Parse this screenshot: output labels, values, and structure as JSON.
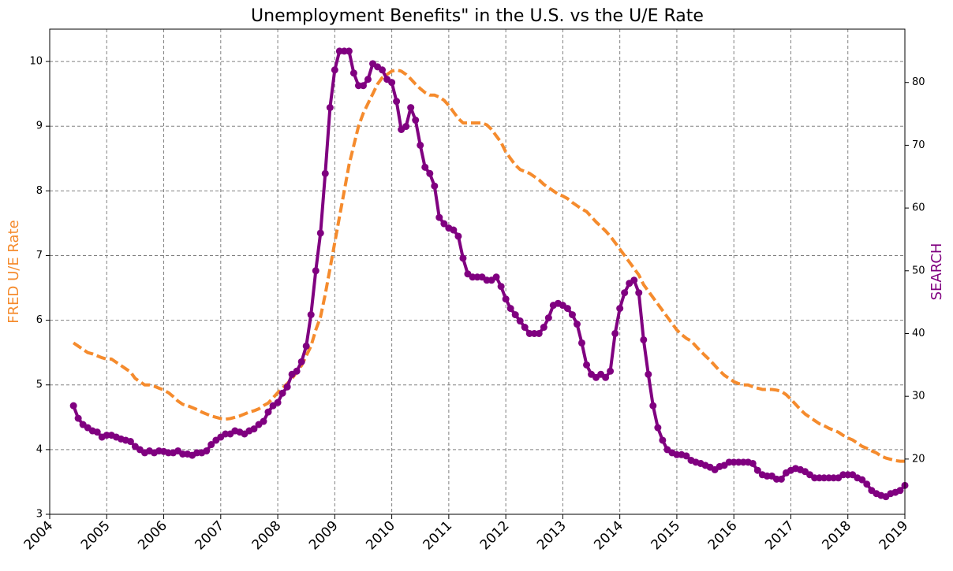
{
  "chart_data": {
    "type": "line",
    "title": "Unemployment Benefits\" in the U.S. vs the U/E Rate",
    "ylabel": "FRED U/E Rate",
    "y2label": "SEARCH",
    "xlim": [
      2004,
      2019
    ],
    "xticks": [
      2004,
      2005,
      2006,
      2007,
      2008,
      2009,
      2010,
      2011,
      2012,
      2013,
      2014,
      2015,
      2016,
      2017,
      2018,
      2019
    ],
    "ylim": [
      3,
      10.5
    ],
    "yticks": [
      3,
      4,
      5,
      6,
      7,
      8,
      9,
      10
    ],
    "y2lim": [
      11.2,
      88.5
    ],
    "y2ticks": [
      20,
      30,
      40,
      50,
      60,
      70,
      80
    ],
    "grid": true,
    "x": [
      2004.417,
      2004.5,
      2004.583,
      2004.667,
      2004.75,
      2004.833,
      2004.917,
      2005,
      2005.083,
      2005.167,
      2005.25,
      2005.333,
      2005.417,
      2005.5,
      2005.583,
      2005.667,
      2005.75,
      2005.833,
      2005.917,
      2006,
      2006.083,
      2006.167,
      2006.25,
      2006.333,
      2006.417,
      2006.5,
      2006.583,
      2006.667,
      2006.75,
      2006.833,
      2006.917,
      2007,
      2007.083,
      2007.167,
      2007.25,
      2007.333,
      2007.417,
      2007.5,
      2007.583,
      2007.667,
      2007.75,
      2007.833,
      2007.917,
      2008,
      2008.083,
      2008.167,
      2008.25,
      2008.333,
      2008.417,
      2008.5,
      2008.583,
      2008.667,
      2008.75,
      2008.833,
      2008.917,
      2009,
      2009.083,
      2009.167,
      2009.25,
      2009.333,
      2009.417,
      2009.5,
      2009.583,
      2009.667,
      2009.75,
      2009.833,
      2009.917,
      2010,
      2010.083,
      2010.167,
      2010.25,
      2010.333,
      2010.417,
      2010.5,
      2010.583,
      2010.667,
      2010.75,
      2010.833,
      2010.917,
      2011,
      2011.083,
      2011.167,
      2011.25,
      2011.333,
      2011.417,
      2011.5,
      2011.583,
      2011.667,
      2011.75,
      2011.833,
      2011.917,
      2012,
      2012.083,
      2012.167,
      2012.25,
      2012.333,
      2012.417,
      2012.5,
      2012.583,
      2012.667,
      2012.75,
      2012.833,
      2012.917,
      2013,
      2013.083,
      2013.167,
      2013.25,
      2013.333,
      2013.417,
      2013.5,
      2013.583,
      2013.667,
      2013.75,
      2013.833,
      2013.917,
      2014,
      2014.083,
      2014.167,
      2014.25,
      2014.333,
      2014.417,
      2014.5,
      2014.583,
      2014.667,
      2014.75,
      2014.833,
      2014.917,
      2015,
      2015.083,
      2015.167,
      2015.25,
      2015.333,
      2015.417,
      2015.5,
      2015.583,
      2015.667,
      2015.75,
      2015.833,
      2015.917,
      2016,
      2016.083,
      2016.167,
      2016.25,
      2016.333,
      2016.417,
      2016.5,
      2016.583,
      2016.667,
      2016.75,
      2016.833,
      2016.917,
      2017,
      2017.083,
      2017.167,
      2017.25,
      2017.333,
      2017.417,
      2017.5,
      2017.583,
      2017.667,
      2017.75,
      2017.833,
      2017.917,
      2018,
      2018.083,
      2018.167,
      2018.25,
      2018.333,
      2018.417,
      2018.5,
      2018.583,
      2018.667,
      2018.75,
      2018.833,
      2018.917,
      2019
    ],
    "series": [
      {
        "color": "#f58b2d",
        "axis": "y",
        "values": [
          5.65,
          5.6,
          5.55,
          5.5,
          5.48,
          5.45,
          5.42,
          5.4,
          5.4,
          5.35,
          5.3,
          5.25,
          5.2,
          5.1,
          5.05,
          5.0,
          5.0,
          4.98,
          4.95,
          4.92,
          4.88,
          4.82,
          4.75,
          4.7,
          4.68,
          4.65,
          4.62,
          4.58,
          4.55,
          4.52,
          4.5,
          4.48,
          4.47,
          4.48,
          4.5,
          4.52,
          4.55,
          4.58,
          4.6,
          4.63,
          4.68,
          4.72,
          4.8,
          4.88,
          4.95,
          5.02,
          5.1,
          5.2,
          5.3,
          5.45,
          5.6,
          5.85,
          6.05,
          6.4,
          6.8,
          7.2,
          7.6,
          8.0,
          8.4,
          8.7,
          9.0,
          9.2,
          9.35,
          9.5,
          9.65,
          9.75,
          9.8,
          9.85,
          9.87,
          9.85,
          9.8,
          9.73,
          9.65,
          9.58,
          9.52,
          9.48,
          9.48,
          9.45,
          9.4,
          9.32,
          9.22,
          9.12,
          9.05,
          9.05,
          9.05,
          9.05,
          9.05,
          9.02,
          8.95,
          8.85,
          8.75,
          8.6,
          8.5,
          8.4,
          8.33,
          8.3,
          8.27,
          8.22,
          8.17,
          8.1,
          8.05,
          8.0,
          7.95,
          7.92,
          7.88,
          7.82,
          7.77,
          7.72,
          7.68,
          7.6,
          7.52,
          7.45,
          7.38,
          7.3,
          7.2,
          7.1,
          7.0,
          6.9,
          6.8,
          6.7,
          6.55,
          6.45,
          6.35,
          6.25,
          6.15,
          6.05,
          5.95,
          5.85,
          5.78,
          5.72,
          5.68,
          5.6,
          5.52,
          5.45,
          5.38,
          5.3,
          5.22,
          5.15,
          5.1,
          5.05,
          5.02,
          5.0,
          5.0,
          4.97,
          4.95,
          4.93,
          4.93,
          4.93,
          4.92,
          4.9,
          4.85,
          4.78,
          4.7,
          4.62,
          4.55,
          4.5,
          4.45,
          4.4,
          4.37,
          4.33,
          4.3,
          4.27,
          4.22,
          4.18,
          4.15,
          4.1,
          4.05,
          4.02,
          3.98,
          3.95,
          3.9,
          3.87,
          3.85,
          3.83,
          3.82,
          3.82
        ]
      },
      {
        "color": "#800080",
        "axis": "y2",
        "values": [
          28.5,
          26.5,
          25.5,
          25,
          24.5,
          24.3,
          23.5,
          23.8,
          23.8,
          23.5,
          23.2,
          23.0,
          22.8,
          22.0,
          21.5,
          21.0,
          21.3,
          21.0,
          21.3,
          21.2,
          21.0,
          21.0,
          21.3,
          20.8,
          20.8,
          20.6,
          21.0,
          21.0,
          21.3,
          22.3,
          23.0,
          23.5,
          24.0,
          24.0,
          24.5,
          24.3,
          24.0,
          24.5,
          24.8,
          25.5,
          26.0,
          27.5,
          28.5,
          29.0,
          30.5,
          31.5,
          33.5,
          34.0,
          35.5,
          38.0,
          43.0,
          50.0,
          56.0,
          65.5,
          76.0,
          82.0,
          85.0,
          85.0,
          85.0,
          81.5,
          79.5,
          79.5,
          80.5,
          83.0,
          82.5,
          82.0,
          80.5,
          80.0,
          77.0,
          72.5,
          73.0,
          76.0,
          74.0,
          70.0,
          66.5,
          65.5,
          63.5,
          58.5,
          57.5,
          56.8,
          56.5,
          55.5,
          52.0,
          49.5,
          49.0,
          49.0,
          49.0,
          48.5,
          48.5,
          49.0,
          47.5,
          45.5,
          44.0,
          43.0,
          42.0,
          41.0,
          40.0,
          40.0,
          40.0,
          41.0,
          42.5,
          44.5,
          44.8,
          44.5,
          44.0,
          43.0,
          41.5,
          38.5,
          35.0,
          33.5,
          33.0,
          33.5,
          33.0,
          34.0,
          40.0,
          44.0,
          46.5,
          48.0,
          48.5,
          46.5,
          39.0,
          33.5,
          28.5,
          25.0,
          23.0,
          21.5,
          21.0,
          20.7,
          20.7,
          20.5,
          19.8,
          19.5,
          19.3,
          19.0,
          18.7,
          18.3,
          18.8,
          19.0,
          19.5,
          19.5,
          19.5,
          19.5,
          19.5,
          19.3,
          18.2,
          17.5,
          17.3,
          17.3,
          16.8,
          16.8,
          17.8,
          18.2,
          18.5,
          18.3,
          18.0,
          17.5,
          17.0,
          17.0,
          17.0,
          17.0,
          17.0,
          17.0,
          17.5,
          17.5,
          17.5,
          17.0,
          16.7,
          16.0,
          15.0,
          14.5,
          14.2,
          14.0,
          14.5,
          14.7,
          15.0,
          15.8
        ]
      }
    ]
  }
}
